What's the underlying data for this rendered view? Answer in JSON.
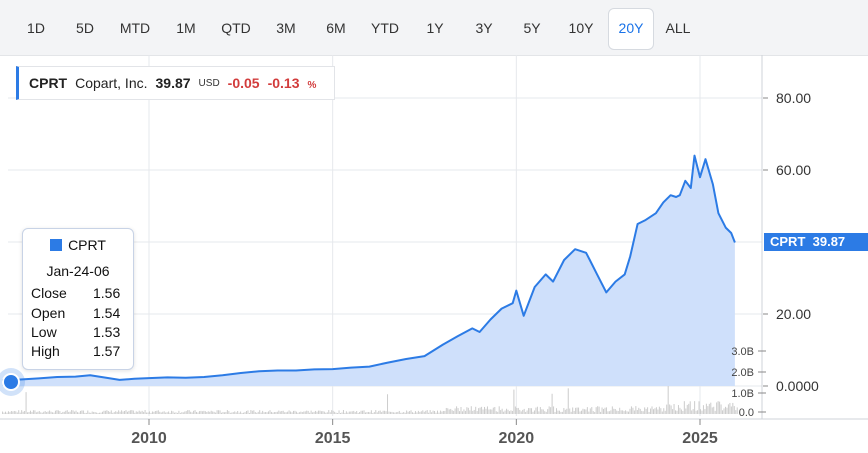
{
  "range_buttons": [
    {
      "label": "1D",
      "active": false
    },
    {
      "label": "5D",
      "active": false
    },
    {
      "label": "MTD",
      "active": false
    },
    {
      "label": "1M",
      "active": false
    },
    {
      "label": "QTD",
      "active": false
    },
    {
      "label": "3M",
      "active": false
    },
    {
      "label": "6M",
      "active": false
    },
    {
      "label": "YTD",
      "active": false
    },
    {
      "label": "1Y",
      "active": false
    },
    {
      "label": "3Y",
      "active": false
    },
    {
      "label": "5Y",
      "active": false
    },
    {
      "label": "10Y",
      "active": false
    },
    {
      "label": "20Y",
      "active": true
    },
    {
      "label": "ALL",
      "active": false
    }
  ],
  "quote": {
    "symbol": "CPRT",
    "name": "Copart, Inc.",
    "price": "39.87",
    "currency": "USD",
    "change": "-0.05",
    "change_pct": "-0.13",
    "pct_sign": "%"
  },
  "tooltip": {
    "series": "CPRT",
    "date": "Jan-24-06",
    "rows": [
      {
        "label": "Close",
        "value": "1.56"
      },
      {
        "label": "Open",
        "value": "1.54"
      },
      {
        "label": "Low",
        "value": "1.53"
      },
      {
        "label": "High",
        "value": "1.57"
      }
    ]
  },
  "price_tag": {
    "symbol": "CPRT",
    "value": "39.87"
  },
  "colors": {
    "accent": "#2c7be5",
    "area_fill": "#cfe0fb",
    "negative": "#d23c3c",
    "volume": "#cccccc"
  },
  "chart_data": {
    "type": "area",
    "series": [
      {
        "name": "CPRT",
        "x": [
          2006.0,
          2006.5,
          2007.0,
          2007.5,
          2008.0,
          2008.4,
          2008.9,
          2009.2,
          2009.6,
          2010.0,
          2010.5,
          2011.0,
          2011.5,
          2012.0,
          2012.5,
          2013.0,
          2013.5,
          2014.0,
          2014.5,
          2015.0,
          2015.5,
          2016.0,
          2016.5,
          2017.0,
          2017.5,
          2018.0,
          2018.4,
          2018.8,
          2019.0,
          2019.3,
          2019.6,
          2019.9,
          2020.0,
          2020.2,
          2020.35,
          2020.5,
          2020.8,
          2021.0,
          2021.3,
          2021.6,
          2021.9,
          2022.0,
          2022.2,
          2022.45,
          2022.7,
          2022.95,
          2023.1,
          2023.3,
          2023.5,
          2023.8,
          2024.0,
          2024.2,
          2024.35,
          2024.45,
          2024.6,
          2024.75,
          2024.85,
          2025.0,
          2025.15,
          2025.35,
          2025.5,
          2025.7,
          2025.85,
          2025.95
        ],
        "values": [
          1.56,
          1.8,
          2.1,
          2.5,
          2.6,
          3.0,
          2.2,
          1.7,
          2.0,
          2.2,
          2.4,
          2.3,
          2.5,
          3.0,
          3.6,
          4.1,
          4.3,
          4.3,
          4.6,
          4.7,
          5.1,
          5.4,
          6.5,
          7.5,
          8.3,
          11.5,
          13.8,
          16.0,
          15.0,
          18.5,
          21.5,
          23.0,
          26.5,
          19.5,
          23.5,
          27.5,
          31.0,
          29.0,
          35.0,
          38.0,
          37.0,
          35.0,
          31.0,
          26.0,
          29.0,
          31.0,
          36.0,
          45.0,
          46.0,
          48.0,
          51.0,
          53.0,
          52.5,
          53.0,
          57.0,
          55.0,
          64.0,
          58.0,
          63.0,
          56.0,
          48.0,
          44.0,
          42.5,
          39.87
        ]
      }
    ],
    "x_ticks": [
      "2010",
      "2015",
      "2020",
      "2025"
    ],
    "y_ticks": [
      "80.00",
      "60.00",
      "20.00",
      "0.0000"
    ],
    "y_tick_values": [
      80,
      60,
      20,
      0
    ],
    "xlim": [
      2006.0,
      2026.2
    ],
    "ylim": [
      0,
      92
    ],
    "volume_ticks": [
      "3.0B",
      "2.0B",
      "1.0B",
      "0.0"
    ],
    "volume_tick_values": [
      3.0,
      2.0,
      1.0,
      0.0
    ],
    "grid": true
  }
}
